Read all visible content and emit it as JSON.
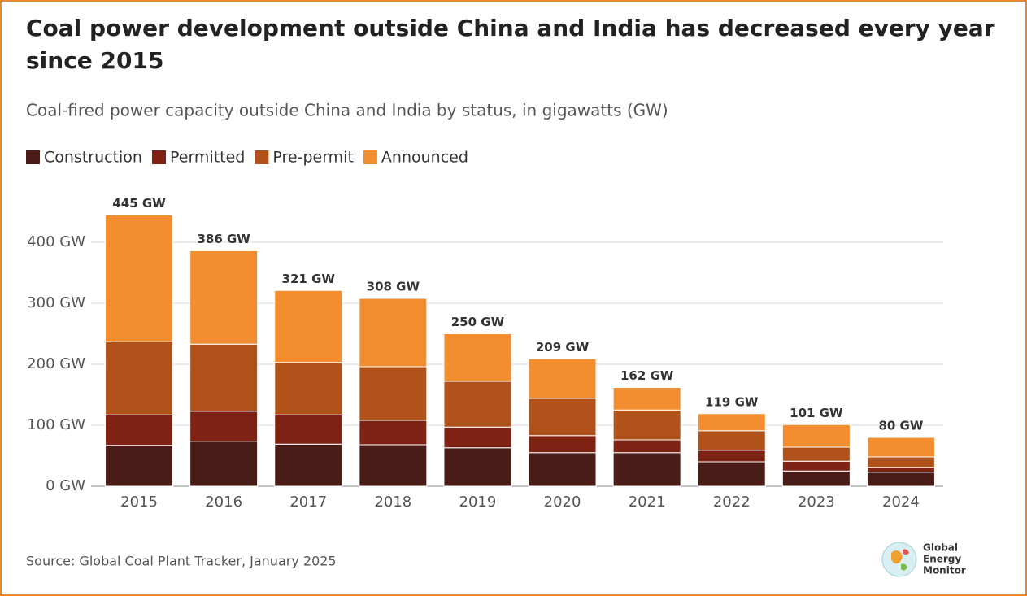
{
  "chart_data": {
    "type": "stacked_bar",
    "title": "Coal power development outside China and India has decreased every year since 2015",
    "subtitle": "Coal-fired power capacity outside China and India by status, in gigawatts (GW)",
    "categories": [
      "2015",
      "2016",
      "2017",
      "2018",
      "2019",
      "2020",
      "2021",
      "2022",
      "2023",
      "2024"
    ],
    "series": [
      {
        "name": "Construction",
        "color": "#4a1c17",
        "values": [
          67,
          73,
          69,
          68,
          63,
          55,
          55,
          40,
          25,
          23
        ]
      },
      {
        "name": "Permitted",
        "color": "#7e2214",
        "values": [
          50,
          50,
          48,
          40,
          34,
          28,
          21,
          19,
          16,
          8
        ]
      },
      {
        "name": "Pre-permit",
        "color": "#b0521a",
        "values": [
          120,
          110,
          86,
          88,
          75,
          61,
          49,
          32,
          23,
          17
        ]
      },
      {
        "name": "Announced",
        "color": "#f28e30",
        "values": [
          208,
          153,
          118,
          112,
          78,
          65,
          37,
          28,
          37,
          32
        ]
      }
    ],
    "totals": [
      445,
      386,
      321,
      308,
      250,
      209,
      162,
      119,
      101,
      80
    ],
    "total_labels": [
      "445 GW",
      "386 GW",
      "321 GW",
      "308 GW",
      "250 GW",
      "209 GW",
      "162 GW",
      "119 GW",
      "101 GW",
      "80 GW"
    ],
    "ylim": [
      0,
      480
    ],
    "yticks": [
      {
        "value": 0,
        "label": "0 GW"
      },
      {
        "value": 100,
        "label": "100 GW"
      },
      {
        "value": 200,
        "label": "200 GW"
      },
      {
        "value": 300,
        "label": "300 GW"
      },
      {
        "value": 400,
        "label": "400 GW"
      }
    ],
    "grid": true,
    "source": "Source: Global Coal Plant Tracker, January 2025",
    "logo": [
      "Global",
      "Energy",
      "Monitor"
    ]
  }
}
